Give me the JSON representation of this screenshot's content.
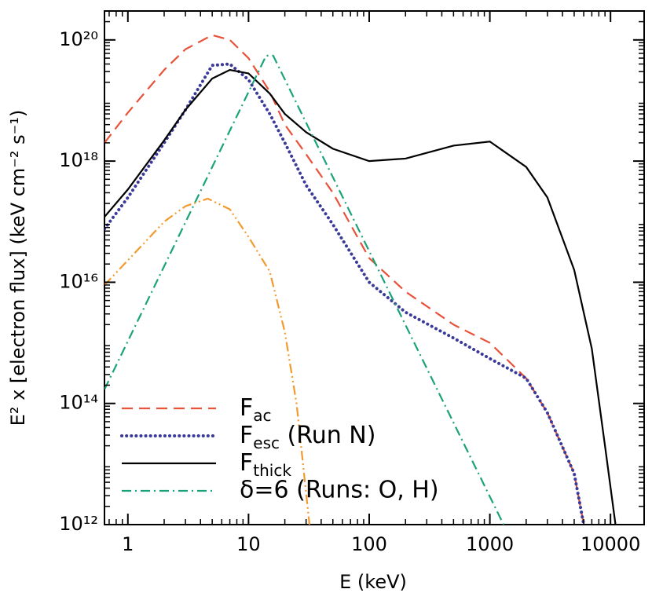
{
  "chart_data": {
    "type": "line",
    "xlabel": "E (keV)",
    "ylabel": "E² x [electron flux] (keV cm⁻² s⁻¹)",
    "xscale": "log",
    "yscale": "log",
    "xlim": [
      0.64,
      19000
    ],
    "ylim": [
      1000000000000.0,
      3e+20
    ],
    "xticks": [
      1,
      10,
      100,
      1000,
      10000
    ],
    "yticks": [
      {
        "value": 1000000000000.0,
        "label": "10¹²"
      },
      {
        "value": 100000000000000.0,
        "label": "10¹⁴"
      },
      {
        "value": 1e+16,
        "label": "10¹⁶"
      },
      {
        "value": 1e+18,
        "label": "10¹⁸"
      },
      {
        "value": 1e+20,
        "label": "10²⁰"
      }
    ],
    "legend": "lower left",
    "series": [
      {
        "name": "Fac",
        "subscript": "ac",
        "color": "#e8513a",
        "dash": "dashed",
        "x": [
          0.64,
          1,
          2,
          3,
          5,
          7,
          10,
          15,
          20,
          30,
          50,
          100,
          200,
          500,
          1000,
          2000,
          3000,
          5000,
          6000
        ],
        "values": [
          2e+18,
          6.3e+18,
          3.2e+19,
          7e+19,
          1.2e+20,
          1e+20,
          5e+19,
          1.4e+19,
          4e+18,
          1.3e+18,
          3e+17,
          2.5e+16,
          7000000000000000.0,
          2000000000000000.0,
          1000000000000000.0,
          260000000000000.0,
          70000000000000.0,
          7000000000000.0,
          1000000000000.0
        ]
      },
      {
        "name": "Fesc (Run N)",
        "subscript": "esc",
        "color": "#3a3a9a",
        "dash": "dotted",
        "x": [
          0.64,
          1,
          2,
          3,
          5,
          7,
          10,
          15,
          20,
          30,
          50,
          100,
          200,
          500,
          1000,
          2000,
          3000,
          5000,
          6000
        ],
        "values": [
          7.6e+16,
          2.5e+17,
          2e+18,
          7e+18,
          3.8e+19,
          4e+19,
          2.2e+19,
          6e+18,
          2e+18,
          4e+17,
          9e+16,
          1e+16,
          3200000000000000.0,
          1200000000000000.0,
          550000000000000.0,
          260000000000000.0,
          70000000000000.0,
          7000000000000.0,
          1000000000000.0
        ]
      },
      {
        "name": "Fthick",
        "subscript": "thick",
        "color": "#000000",
        "dash": "solid",
        "x": [
          0.64,
          1,
          2,
          3,
          5,
          7,
          10,
          15,
          20,
          30,
          50,
          100,
          200,
          500,
          1000,
          2000,
          3000,
          5000,
          7000,
          9000,
          11000
        ],
        "values": [
          1.2e+17,
          3.4e+17,
          2.2e+18,
          7e+18,
          2.3e+19,
          3.2e+19,
          2.8e+19,
          1.3e+19,
          6e+18,
          3e+18,
          1.6e+18,
          1e+18,
          1.1e+18,
          1.8e+18,
          2.1e+18,
          8e+17,
          2.5e+17,
          1.6e+16,
          800000000000000.0,
          20000000000000.0,
          1000000000000.0
        ]
      },
      {
        "name": "δ=6 (Runs: O, H)",
        "color": "#1aa37a",
        "dash": "dashdot",
        "x": [
          0.64,
          14,
          16,
          1300
        ],
        "values": [
          170000000000000.0,
          5.5e+19,
          5.5e+19,
          1000000000000.0
        ]
      },
      {
        "name": null,
        "color": "#f39a2e",
        "dash": "dashdotdot",
        "x": [
          0.64,
          1,
          2,
          3,
          4.6,
          7,
          10,
          15,
          20,
          25,
          32
        ],
        "values": [
          9000000000000000.0,
          2.3e+16,
          1e+17,
          1.8e+17,
          2.4e+17,
          1.6e+17,
          5.6e+16,
          1.5e+16,
          1500000000000000.0,
          100000000000000.0,
          1000000000000.0
        ]
      }
    ]
  }
}
